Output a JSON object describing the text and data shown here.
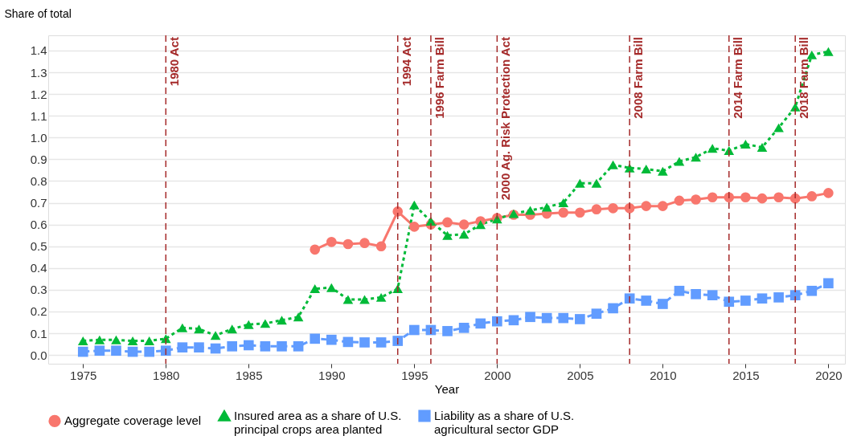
{
  "chart_data": {
    "type": "line",
    "xlabel": "Year",
    "ylabel": "Share of total",
    "xlim": [
      1972.9,
      2021
    ],
    "ylim": [
      -0.04,
      1.47
    ],
    "xticks": [
      1975,
      1980,
      1985,
      1990,
      1995,
      2000,
      2005,
      2010,
      2015,
      2020
    ],
    "yticks": [
      {
        "value": 0,
        "label": "0.0"
      },
      0.1,
      0.2,
      0.3,
      0.4,
      0.5,
      0.6,
      0.7,
      0.8,
      0.9,
      {
        "value": 1,
        "label": "1.0"
      },
      1.1,
      1.2,
      1.3,
      1.4
    ],
    "grid": "y",
    "legend": "bottom",
    "series": [
      {
        "name": "Aggregate coverage level",
        "color": "#f8766d",
        "marker": "circle",
        "line_style": "solid",
        "x": [
          1989,
          1990,
          1991,
          1992,
          1993,
          1994,
          1995,
          1996,
          1997,
          1998,
          1999,
          2000,
          2001,
          2002,
          2003,
          2004,
          2005,
          2006,
          2007,
          2008,
          2009,
          2010,
          2011,
          2012,
          2013,
          2014,
          2015,
          2016,
          2017,
          2018,
          2019,
          2020
        ],
        "values": [
          0.485,
          0.52,
          0.51,
          0.515,
          0.5,
          0.66,
          0.59,
          0.6,
          0.61,
          0.6,
          0.615,
          0.63,
          0.645,
          0.645,
          0.65,
          0.655,
          0.655,
          0.67,
          0.675,
          0.675,
          0.685,
          0.685,
          0.71,
          0.715,
          0.725,
          0.725,
          0.725,
          0.72,
          0.725,
          0.72,
          0.73,
          0.745
        ]
      },
      {
        "name": "Insured area as a share of U.S.\nprincipal crops area planted",
        "color": "#00ba38",
        "marker": "triangle",
        "line_style": "dotted",
        "x": [
          1975,
          1976,
          1977,
          1978,
          1979,
          1980,
          1981,
          1982,
          1983,
          1984,
          1985,
          1986,
          1987,
          1988,
          1989,
          1990,
          1991,
          1992,
          1993,
          1994,
          1995,
          1996,
          1997,
          1998,
          1999,
          2000,
          2001,
          2002,
          2003,
          2004,
          2005,
          2006,
          2007,
          2008,
          2009,
          2010,
          2011,
          2012,
          2013,
          2014,
          2015,
          2016,
          2017,
          2018,
          2019,
          2020
        ],
        "values": [
          0.065,
          0.07,
          0.07,
          0.065,
          0.065,
          0.075,
          0.125,
          0.12,
          0.09,
          0.12,
          0.14,
          0.145,
          0.16,
          0.175,
          0.305,
          0.31,
          0.255,
          0.255,
          0.265,
          0.305,
          0.69,
          0.615,
          0.55,
          0.555,
          0.6,
          0.625,
          0.65,
          0.665,
          0.68,
          0.7,
          0.79,
          0.79,
          0.875,
          0.86,
          0.855,
          0.845,
          0.89,
          0.91,
          0.95,
          0.94,
          0.97,
          0.955,
          1.045,
          1.14,
          1.38,
          1.395
        ]
      },
      {
        "name": "Liability as a share of U.S.\n agricultural sector GDP",
        "color": "#619cff",
        "marker": "square",
        "line_style": "dashed",
        "x": [
          1975,
          1976,
          1977,
          1978,
          1979,
          1980,
          1981,
          1982,
          1983,
          1984,
          1985,
          1986,
          1987,
          1988,
          1989,
          1990,
          1991,
          1992,
          1993,
          1994,
          1995,
          1996,
          1997,
          1998,
          1999,
          2000,
          2001,
          2002,
          2003,
          2004,
          2005,
          2006,
          2007,
          2008,
          2009,
          2010,
          2011,
          2012,
          2013,
          2014,
          2015,
          2016,
          2017,
          2018,
          2019,
          2020
        ],
        "values": [
          0.015,
          0.02,
          0.02,
          0.015,
          0.015,
          0.02,
          0.035,
          0.035,
          0.03,
          0.04,
          0.045,
          0.04,
          0.04,
          0.04,
          0.075,
          0.07,
          0.06,
          0.058,
          0.058,
          0.065,
          0.115,
          0.115,
          0.11,
          0.125,
          0.145,
          0.155,
          0.16,
          0.175,
          0.17,
          0.17,
          0.165,
          0.19,
          0.215,
          0.26,
          0.25,
          0.235,
          0.295,
          0.28,
          0.275,
          0.245,
          0.25,
          0.26,
          0.265,
          0.275,
          0.295,
          0.33
        ]
      }
    ],
    "ref_lines": [
      {
        "axis": "x",
        "value": 1980,
        "label": "1980 Act",
        "color": "#a52a2a",
        "line_style": "dashed"
      },
      {
        "axis": "x",
        "value": 1994,
        "label": "1994 Act",
        "color": "#a52a2a",
        "line_style": "dashed"
      },
      {
        "axis": "x",
        "value": 1996,
        "label": "1996 Farm Bill",
        "color": "#a52a2a",
        "line_style": "dashed"
      },
      {
        "axis": "x",
        "value": 2000,
        "label": "2000 Ag. Risk Protection Act",
        "color": "#a52a2a",
        "line_style": "dashed"
      },
      {
        "axis": "x",
        "value": 2008,
        "label": "2008 Farm Bill",
        "color": "#a52a2a",
        "line_style": "dashed"
      },
      {
        "axis": "x",
        "value": 2014,
        "label": "2014 Farm Bill",
        "color": "#a52a2a",
        "line_style": "dashed"
      },
      {
        "axis": "x",
        "value": 2018,
        "label": "2018 Farm Bill",
        "color": "#a52a2a",
        "line_style": "dashed"
      }
    ]
  }
}
